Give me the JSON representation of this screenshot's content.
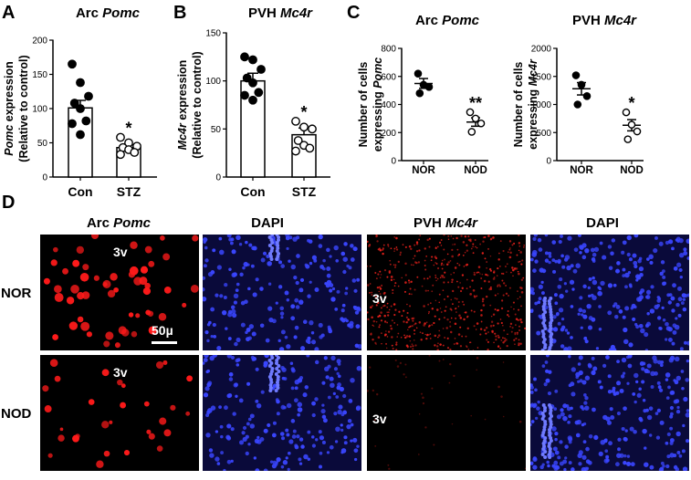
{
  "panel_letters": {
    "a": "A",
    "b": "B",
    "c": "C",
    "d": "D"
  },
  "chart_data": [
    {
      "panel": "A",
      "type": "scatter",
      "title_prefix": "Arc ",
      "title_italic": "Pomc",
      "ylabel_italic": "Pomc",
      "ylabel_rest": " expression",
      "ylabel_line2": "(Relative to control)",
      "ylim": [
        0,
        200
      ],
      "yticks": [
        0,
        50,
        100,
        150,
        200
      ],
      "categories": [
        "Con",
        "STZ"
      ],
      "bars": true,
      "means": [
        101,
        43
      ],
      "sem": [
        11,
        4
      ],
      "points": [
        [
          165,
          138,
          118,
          108,
          100,
          82,
          78,
          62
        ],
        [
          58,
          50,
          45,
          43,
          40,
          36,
          33
        ]
      ],
      "filled": [
        true,
        false
      ],
      "significance": [
        "",
        "*"
      ]
    },
    {
      "panel": "B",
      "type": "scatter",
      "title_prefix": "PVH ",
      "title_italic": "Mc4r",
      "ylabel_italic": "Mc4r",
      "ylabel_rest": " expression",
      "ylabel_line2": "(Relative to control)",
      "ylim": [
        0,
        150
      ],
      "yticks": [
        0,
        50,
        100,
        150
      ],
      "categories": [
        "Con",
        "STZ"
      ],
      "bars": true,
      "means": [
        100,
        44
      ],
      "sem": [
        8,
        7
      ],
      "points": [
        [
          125,
          122,
          112,
          103,
          98,
          88,
          85,
          80
        ],
        [
          58,
          52,
          50,
          38,
          33,
          30,
          27
        ]
      ],
      "filled": [
        true,
        false
      ],
      "significance": [
        "",
        "*"
      ]
    },
    {
      "panel": "C-left",
      "type": "scatter",
      "title_prefix": "Arc ",
      "title_italic": "Pomc",
      "ylabel_line1": "Number of cells",
      "ylabel_line2": "expressing ",
      "ylabel_italic": "Pomc",
      "ylim": [
        0,
        800
      ],
      "yticks": [
        0,
        200,
        400,
        600,
        800
      ],
      "categories": [
        "NOR",
        "NOD"
      ],
      "bars": false,
      "means": [
        550,
        275
      ],
      "sem": [
        35,
        30
      ],
      "points": [
        [
          620,
          540,
          525,
          480
        ],
        [
          345,
          300,
          265,
          205
        ]
      ],
      "filled": [
        true,
        false
      ],
      "significance": [
        "",
        "**"
      ]
    },
    {
      "panel": "C-right",
      "type": "scatter",
      "title_prefix": "PVH ",
      "title_italic": "Mc4r",
      "ylabel_line1": "Number of cells",
      "ylabel_line2": "expressing ",
      "ylabel_italic": "Mc4r",
      "ylim": [
        0,
        2000
      ],
      "yticks": [
        0,
        500,
        1000,
        1500,
        2000
      ],
      "categories": [
        "NOR",
        "NOD"
      ],
      "bars": false,
      "means": [
        1280,
        630
      ],
      "sem": [
        110,
        100
      ],
      "points": [
        [
          1520,
          1350,
          1150,
          1000
        ],
        [
          860,
          640,
          520,
          380
        ]
      ],
      "filled": [
        true,
        false
      ],
      "significance": [
        "",
        "*"
      ]
    }
  ],
  "micrographs": {
    "col_titles": [
      {
        "prefix": "Arc ",
        "italic": "Pomc"
      },
      {
        "prefix": "DAPI",
        "italic": ""
      },
      {
        "prefix": "PVH ",
        "italic": "Mc4r"
      },
      {
        "prefix": "DAPI",
        "italic": ""
      }
    ],
    "row_labels": [
      "NOR",
      "NOD"
    ],
    "ventricle_label": "3v",
    "scale_bar_label": "50µ",
    "colors": {
      "background": "#000000",
      "pomc": "#ff1a1a",
      "mc4r": "#e0201a",
      "dapi": "#3a46ff",
      "dapi_bg": "#0a0a3a"
    }
  }
}
